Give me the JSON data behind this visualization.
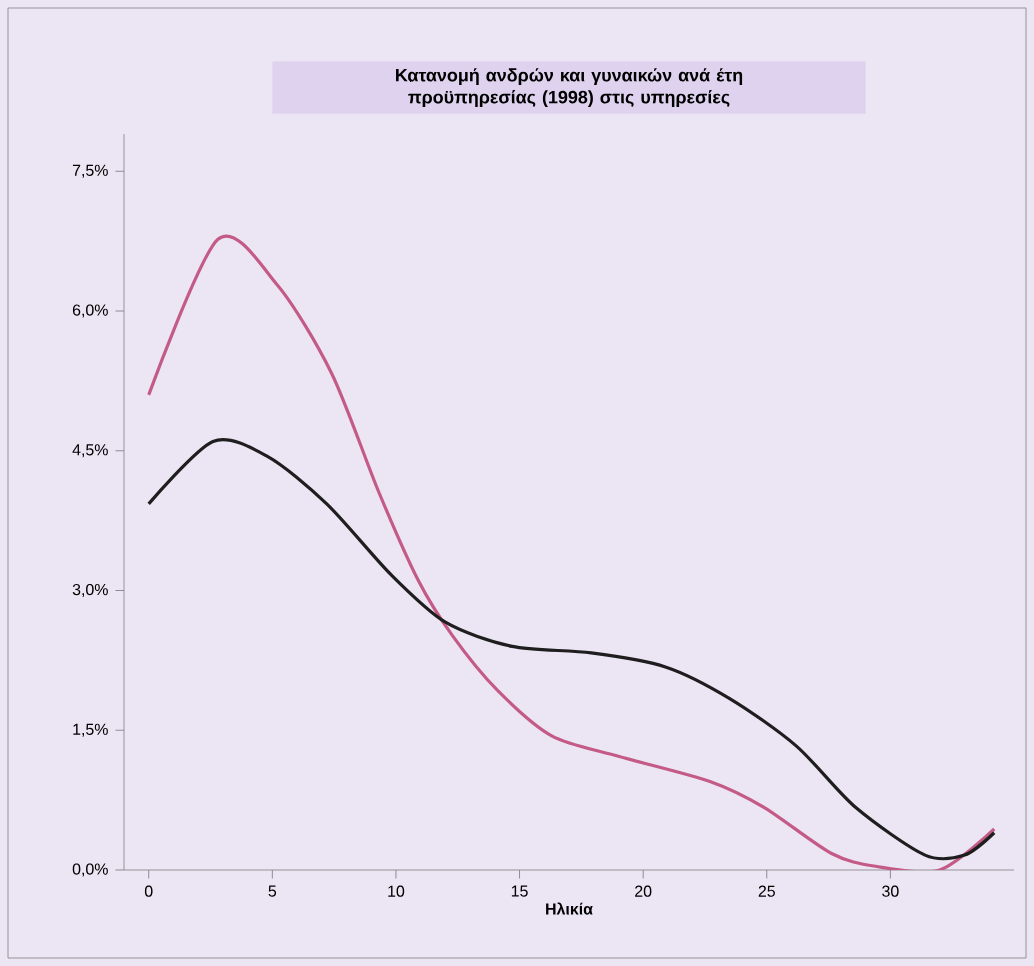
{
  "chart_data": {
    "type": "line",
    "title": "Κατανομή ανδρών και γυναικών ανά έτη προϋπηρεσίας (1998) στις υπηρεσίες",
    "xlabel": "Ηλικία",
    "x": [
      0,
      2.8,
      5.2,
      7.4,
      9.3,
      10.9,
      12.3,
      14.1,
      16.3,
      19,
      22.7,
      24.9,
      27.6,
      29.4,
      32,
      34.2
    ],
    "series": [
      {
        "color": "#c45a86",
        "values": [
          5.1,
          6.77,
          6.28,
          5.33,
          4.06,
          3.11,
          2.51,
          1.93,
          1.44,
          1.22,
          0.95,
          0.67,
          0.18,
          0.04,
          0.0,
          0.44
        ]
      },
      {
        "color": "#1e1e1e",
        "x": [
          0,
          2.6,
          4.8,
          7.2,
          9.8,
          12,
          14.7,
          17.9,
          20.9,
          23.5,
          26.2,
          28.6,
          31.4,
          33,
          34.2
        ],
        "values": [
          3.93,
          4.6,
          4.44,
          3.93,
          3.17,
          2.66,
          2.4,
          2.33,
          2.18,
          1.84,
          1.33,
          0.67,
          0.16,
          0.16,
          0.4
        ]
      }
    ],
    "xlim": [
      -1,
      35
    ],
    "xticks": [
      0,
      5,
      10,
      15,
      20,
      25,
      30
    ],
    "ylim": [
      0,
      7.9
    ],
    "yticks": [
      {
        "value": 0,
        "label": "0,0%"
      },
      {
        "value": 1.5,
        "label": "1,5%"
      },
      {
        "value": 3,
        "label": "3,0%"
      },
      {
        "value": 4.5,
        "label": "4,5%"
      },
      {
        "value": 6,
        "label": "6,0%"
      },
      {
        "value": 7.5,
        "label": "7,5%"
      }
    ],
    "grid": false,
    "marker": "none",
    "line_style": "solid"
  }
}
